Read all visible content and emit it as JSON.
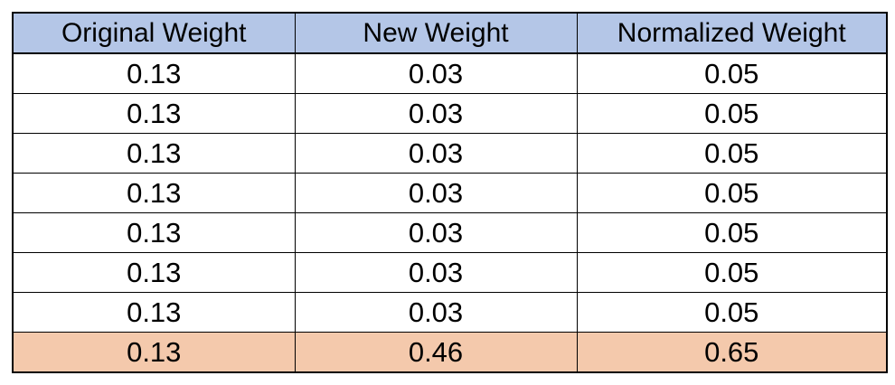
{
  "table": {
    "headers": [
      "Original Weight",
      "New Weight",
      "Normalized Weight"
    ],
    "rows": [
      [
        "0.13",
        "0.03",
        "0.05"
      ],
      [
        "0.13",
        "0.03",
        "0.05"
      ],
      [
        "0.13",
        "0.03",
        "0.05"
      ],
      [
        "0.13",
        "0.03",
        "0.05"
      ],
      [
        "0.13",
        "0.03",
        "0.05"
      ],
      [
        "0.13",
        "0.03",
        "0.05"
      ],
      [
        "0.13",
        "0.03",
        "0.05"
      ],
      [
        "0.13",
        "0.46",
        "0.65"
      ]
    ],
    "highlighted_row_index": 7
  },
  "colors": {
    "header_background": "#b4c6e7",
    "highlight_background": "#f4c9ac",
    "border": "#000000"
  }
}
